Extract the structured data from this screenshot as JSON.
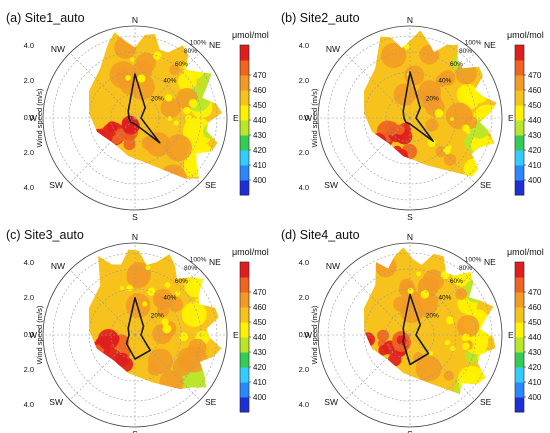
{
  "chart_data": [
    {
      "type": "polar-contour",
      "title": "(a) Site1_auto",
      "ylabel": "Wind speed (m/s)",
      "speed_ticks": [
        "4.0",
        "2.0",
        "0.0",
        "2.0",
        "4.0"
      ],
      "directions": [
        "N",
        "NE",
        "E",
        "SE",
        "S",
        "SW",
        "W",
        "NW"
      ],
      "frequency_ticks": [
        "20%",
        "40%",
        "60%",
        "80%",
        "100%"
      ],
      "colorbar": {
        "unit": "μmol/mol",
        "ticks": [
          400,
          410,
          420,
          430,
          440,
          450,
          460,
          470
        ]
      },
      "coverage_sector_deg": [
        -20,
        140
      ],
      "high_region_deg": 225,
      "wind_frequency_pct": [
        {
          "dir": "N",
          "value": 38
        },
        {
          "dir": "NE",
          "value": 12
        },
        {
          "dir": "E",
          "value": 5
        },
        {
          "dir": "SE",
          "value": 30
        },
        {
          "dir": "S",
          "value": 5
        },
        {
          "dir": "SW",
          "value": 5
        },
        {
          "dir": "W",
          "value": 5
        },
        {
          "dir": "NW",
          "value": 8
        }
      ]
    },
    {
      "type": "polar-contour",
      "title": "(b) Site2_auto",
      "ylabel": "Wind speed (m/s)",
      "speed_ticks": [
        "4.0",
        "2.0",
        "0.0",
        "2.0",
        "4.0"
      ],
      "directions": [
        "N",
        "NE",
        "E",
        "SE",
        "S",
        "SW",
        "W",
        "NW"
      ],
      "frequency_ticks": [
        "20%",
        "40%",
        "60%",
        "80%",
        "100%"
      ],
      "colorbar": {
        "unit": "μmol/mol",
        "ticks": [
          400,
          410,
          420,
          430,
          440,
          450,
          460,
          470
        ]
      },
      "coverage_sector_deg": [
        -20,
        140
      ],
      "high_region_deg": 215,
      "wind_frequency_pct": [
        {
          "dir": "N",
          "value": 40
        },
        {
          "dir": "NE",
          "value": 12
        },
        {
          "dir": "E",
          "value": 5
        },
        {
          "dir": "SE",
          "value": 28
        },
        {
          "dir": "S",
          "value": 5
        },
        {
          "dir": "SW",
          "value": 5
        },
        {
          "dir": "W",
          "value": 5
        },
        {
          "dir": "NW",
          "value": 8
        }
      ]
    },
    {
      "type": "polar-contour",
      "title": "(c) Site3_auto",
      "ylabel": "Wind speed (m/s)",
      "speed_ticks": [
        "4.0",
        "2.0",
        "0.0",
        "2.0",
        "4.0"
      ],
      "directions": [
        "N",
        "NE",
        "E",
        "SE",
        "S",
        "SW",
        "W",
        "NW"
      ],
      "frequency_ticks": [
        "20%",
        "40%",
        "60%",
        "80%",
        "100%"
      ],
      "colorbar": {
        "unit": "μmol/mol",
        "ticks": [
          400,
          410,
          420,
          430,
          440,
          450,
          460,
          470
        ]
      },
      "coverage_sector_deg": [
        -25,
        140
      ],
      "high_region_deg": 230,
      "wind_frequency_pct": [
        {
          "dir": "N",
          "value": 32
        },
        {
          "dir": "NE",
          "value": 10
        },
        {
          "dir": "E",
          "value": 5
        },
        {
          "dir": "SE",
          "value": 18
        },
        {
          "dir": "S",
          "value": 20
        },
        {
          "dir": "SW",
          "value": 10
        },
        {
          "dir": "W",
          "value": 5
        },
        {
          "dir": "NW",
          "value": 8
        }
      ]
    },
    {
      "type": "polar-contour",
      "title": "(d) Site4_auto",
      "ylabel": "Wind speed (m/s)",
      "speed_ticks": [
        "4.0",
        "2.0",
        "0.0",
        "2.0",
        "4.0"
      ],
      "directions": [
        "N",
        "NE",
        "E",
        "SE",
        "S",
        "SW",
        "W",
        "NW"
      ],
      "frequency_ticks": [
        "20%",
        "40%",
        "60%",
        "80%",
        "100%"
      ],
      "colorbar": {
        "unit": "μmol/mol",
        "ticks": [
          400,
          410,
          420,
          430,
          440,
          450,
          460,
          470
        ]
      },
      "coverage_sector_deg": [
        -25,
        140
      ],
      "high_region_deg": 240,
      "wind_frequency_pct": [
        {
          "dir": "N",
          "value": 35
        },
        {
          "dir": "NE",
          "value": 12
        },
        {
          "dir": "E",
          "value": 5
        },
        {
          "dir": "SE",
          "value": 22
        },
        {
          "dir": "S",
          "value": 25
        },
        {
          "dir": "SW",
          "value": 8
        },
        {
          "dir": "W",
          "value": 5
        },
        {
          "dir": "NW",
          "value": 8
        }
      ]
    }
  ],
  "colors": {
    "scale": [
      "#1f2fd6",
      "#2a88ff",
      "#33ccff",
      "#33cc55",
      "#b8e62a",
      "#fff200",
      "#f7c21b",
      "#f29a25",
      "#ee6420",
      "#e01e1e"
    ],
    "grid": "#9a9a9a",
    "freq_line": "#1a1a1a"
  }
}
